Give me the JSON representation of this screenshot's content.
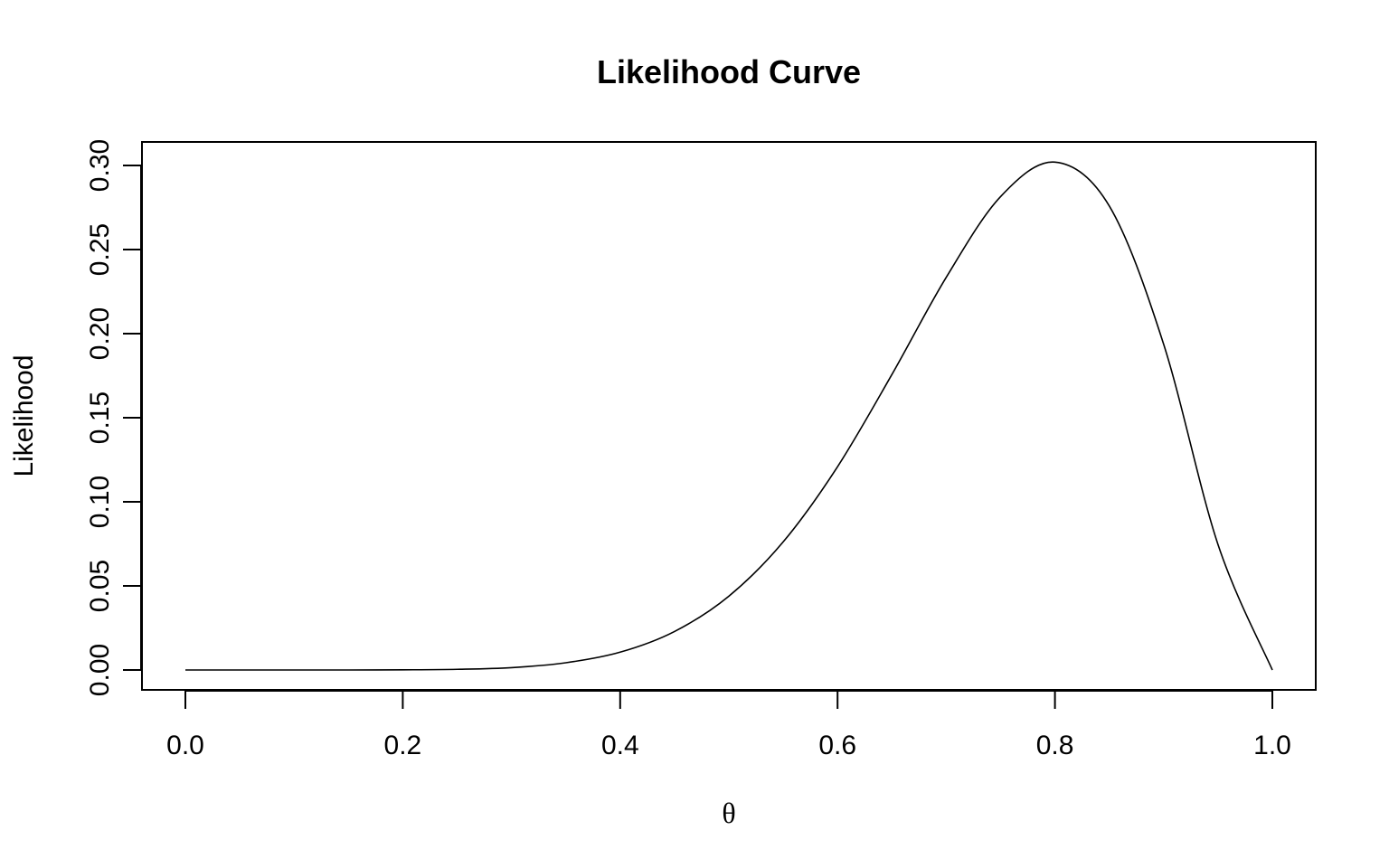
{
  "chart_data": {
    "type": "line",
    "title": "Likelihood Curve",
    "xlabel": "θ",
    "ylabel": "Likelihood",
    "xlim": [
      0.0,
      1.0
    ],
    "ylim": [
      0.0,
      0.3
    ],
    "x_ticks": [
      "0.0",
      "0.2",
      "0.4",
      "0.6",
      "0.8",
      "1.0"
    ],
    "y_ticks": [
      "0.00",
      "0.05",
      "0.10",
      "0.15",
      "0.20",
      "0.25",
      "0.30"
    ],
    "grid": false,
    "legend": "none",
    "line_color": "#000000",
    "series": [
      {
        "x": [
          0.0,
          0.05,
          0.1,
          0.15,
          0.2,
          0.25,
          0.3,
          0.35,
          0.4,
          0.45,
          0.5,
          0.55,
          0.6,
          0.65,
          0.7,
          0.75,
          0.8,
          0.85,
          0.9,
          0.95,
          1.0
        ],
        "values": [
          0.0,
          0.0,
          0.0,
          0.0,
          0.0001,
          0.0004,
          0.0014,
          0.0043,
          0.0106,
          0.0229,
          0.0439,
          0.0762,
          0.1209,
          0.1757,
          0.2335,
          0.2815,
          0.302,
          0.2759,
          0.1937,
          0.0746,
          0.0
        ]
      }
    ]
  }
}
